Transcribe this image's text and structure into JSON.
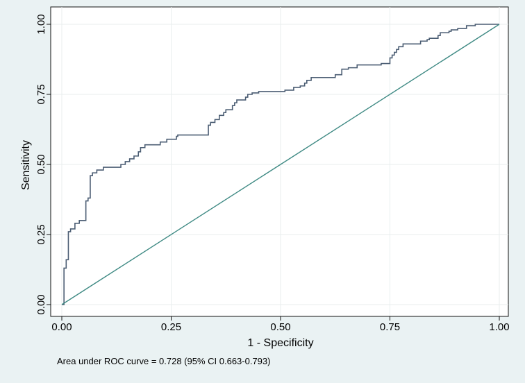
{
  "chart_data": {
    "type": "line",
    "title": "",
    "xlabel": "1 - Specificity",
    "ylabel": "Sensitivity",
    "xlim": [
      0,
      1
    ],
    "ylim": [
      0,
      1
    ],
    "grid": true,
    "xticks": [
      0,
      0.25,
      0.5,
      0.75,
      1
    ],
    "yticks": [
      0,
      0.25,
      0.5,
      0.75,
      1
    ],
    "xtick_labels": [
      "0.00",
      "0.25",
      "0.50",
      "0.75",
      "1.00"
    ],
    "ytick_labels": [
      "0.00",
      "0.25",
      "0.50",
      "0.75",
      "1.00"
    ],
    "note": "Area under ROC curve = 0.728 (95% CI 0.663-0.793)",
    "series": [
      {
        "name": "ROC curve",
        "style": "step",
        "color": "#4b5d73",
        "x": [
          0.0,
          0.005,
          0.005,
          0.01,
          0.01,
          0.015,
          0.015,
          0.02,
          0.02,
          0.03,
          0.03,
          0.04,
          0.04,
          0.055,
          0.055,
          0.06,
          0.06,
          0.065,
          0.065,
          0.07,
          0.07,
          0.08,
          0.08,
          0.095,
          0.095,
          0.135,
          0.135,
          0.145,
          0.145,
          0.155,
          0.155,
          0.165,
          0.165,
          0.175,
          0.175,
          0.18,
          0.18,
          0.19,
          0.19,
          0.225,
          0.225,
          0.24,
          0.24,
          0.262,
          0.262,
          0.265,
          0.265,
          0.335,
          0.335,
          0.34,
          0.34,
          0.35,
          0.35,
          0.36,
          0.36,
          0.37,
          0.37,
          0.375,
          0.375,
          0.39,
          0.39,
          0.395,
          0.395,
          0.4,
          0.4,
          0.42,
          0.42,
          0.425,
          0.425,
          0.435,
          0.435,
          0.45,
          0.45,
          0.51,
          0.51,
          0.53,
          0.53,
          0.545,
          0.545,
          0.555,
          0.555,
          0.56,
          0.56,
          0.57,
          0.57,
          0.625,
          0.625,
          0.64,
          0.64,
          0.655,
          0.655,
          0.675,
          0.675,
          0.73,
          0.73,
          0.75,
          0.75,
          0.755,
          0.755,
          0.76,
          0.76,
          0.765,
          0.765,
          0.77,
          0.77,
          0.78,
          0.78,
          0.82,
          0.82,
          0.835,
          0.835,
          0.84,
          0.84,
          0.86,
          0.86,
          0.865,
          0.865,
          0.885,
          0.885,
          0.89,
          0.89,
          0.905,
          0.905,
          0.925,
          0.925,
          0.945,
          0.945,
          1.0
        ],
        "y": [
          0.0,
          0.0,
          0.13,
          0.13,
          0.16,
          0.16,
          0.26,
          0.26,
          0.27,
          0.27,
          0.29,
          0.29,
          0.3,
          0.3,
          0.37,
          0.37,
          0.38,
          0.38,
          0.46,
          0.46,
          0.47,
          0.47,
          0.48,
          0.48,
          0.49,
          0.49,
          0.5,
          0.5,
          0.51,
          0.51,
          0.52,
          0.52,
          0.53,
          0.53,
          0.545,
          0.545,
          0.56,
          0.56,
          0.57,
          0.57,
          0.58,
          0.58,
          0.59,
          0.59,
          0.6,
          0.6,
          0.605,
          0.605,
          0.64,
          0.64,
          0.65,
          0.65,
          0.66,
          0.66,
          0.675,
          0.675,
          0.685,
          0.685,
          0.695,
          0.695,
          0.71,
          0.71,
          0.72,
          0.72,
          0.73,
          0.73,
          0.74,
          0.74,
          0.75,
          0.75,
          0.755,
          0.755,
          0.76,
          0.76,
          0.765,
          0.765,
          0.775,
          0.775,
          0.78,
          0.78,
          0.79,
          0.79,
          0.8,
          0.8,
          0.81,
          0.81,
          0.82,
          0.82,
          0.84,
          0.84,
          0.845,
          0.845,
          0.855,
          0.855,
          0.86,
          0.86,
          0.88,
          0.88,
          0.89,
          0.89,
          0.9,
          0.9,
          0.91,
          0.91,
          0.92,
          0.92,
          0.93,
          0.93,
          0.94,
          0.94,
          0.945,
          0.945,
          0.95,
          0.95,
          0.96,
          0.96,
          0.97,
          0.97,
          0.975,
          0.975,
          0.98,
          0.98,
          0.985,
          0.985,
          0.995,
          0.995,
          1.0,
          1.0
        ]
      },
      {
        "name": "Reference line",
        "style": "line",
        "color": "#3f8a84",
        "x": [
          0,
          1
        ],
        "y": [
          0,
          1
        ]
      }
    ]
  }
}
